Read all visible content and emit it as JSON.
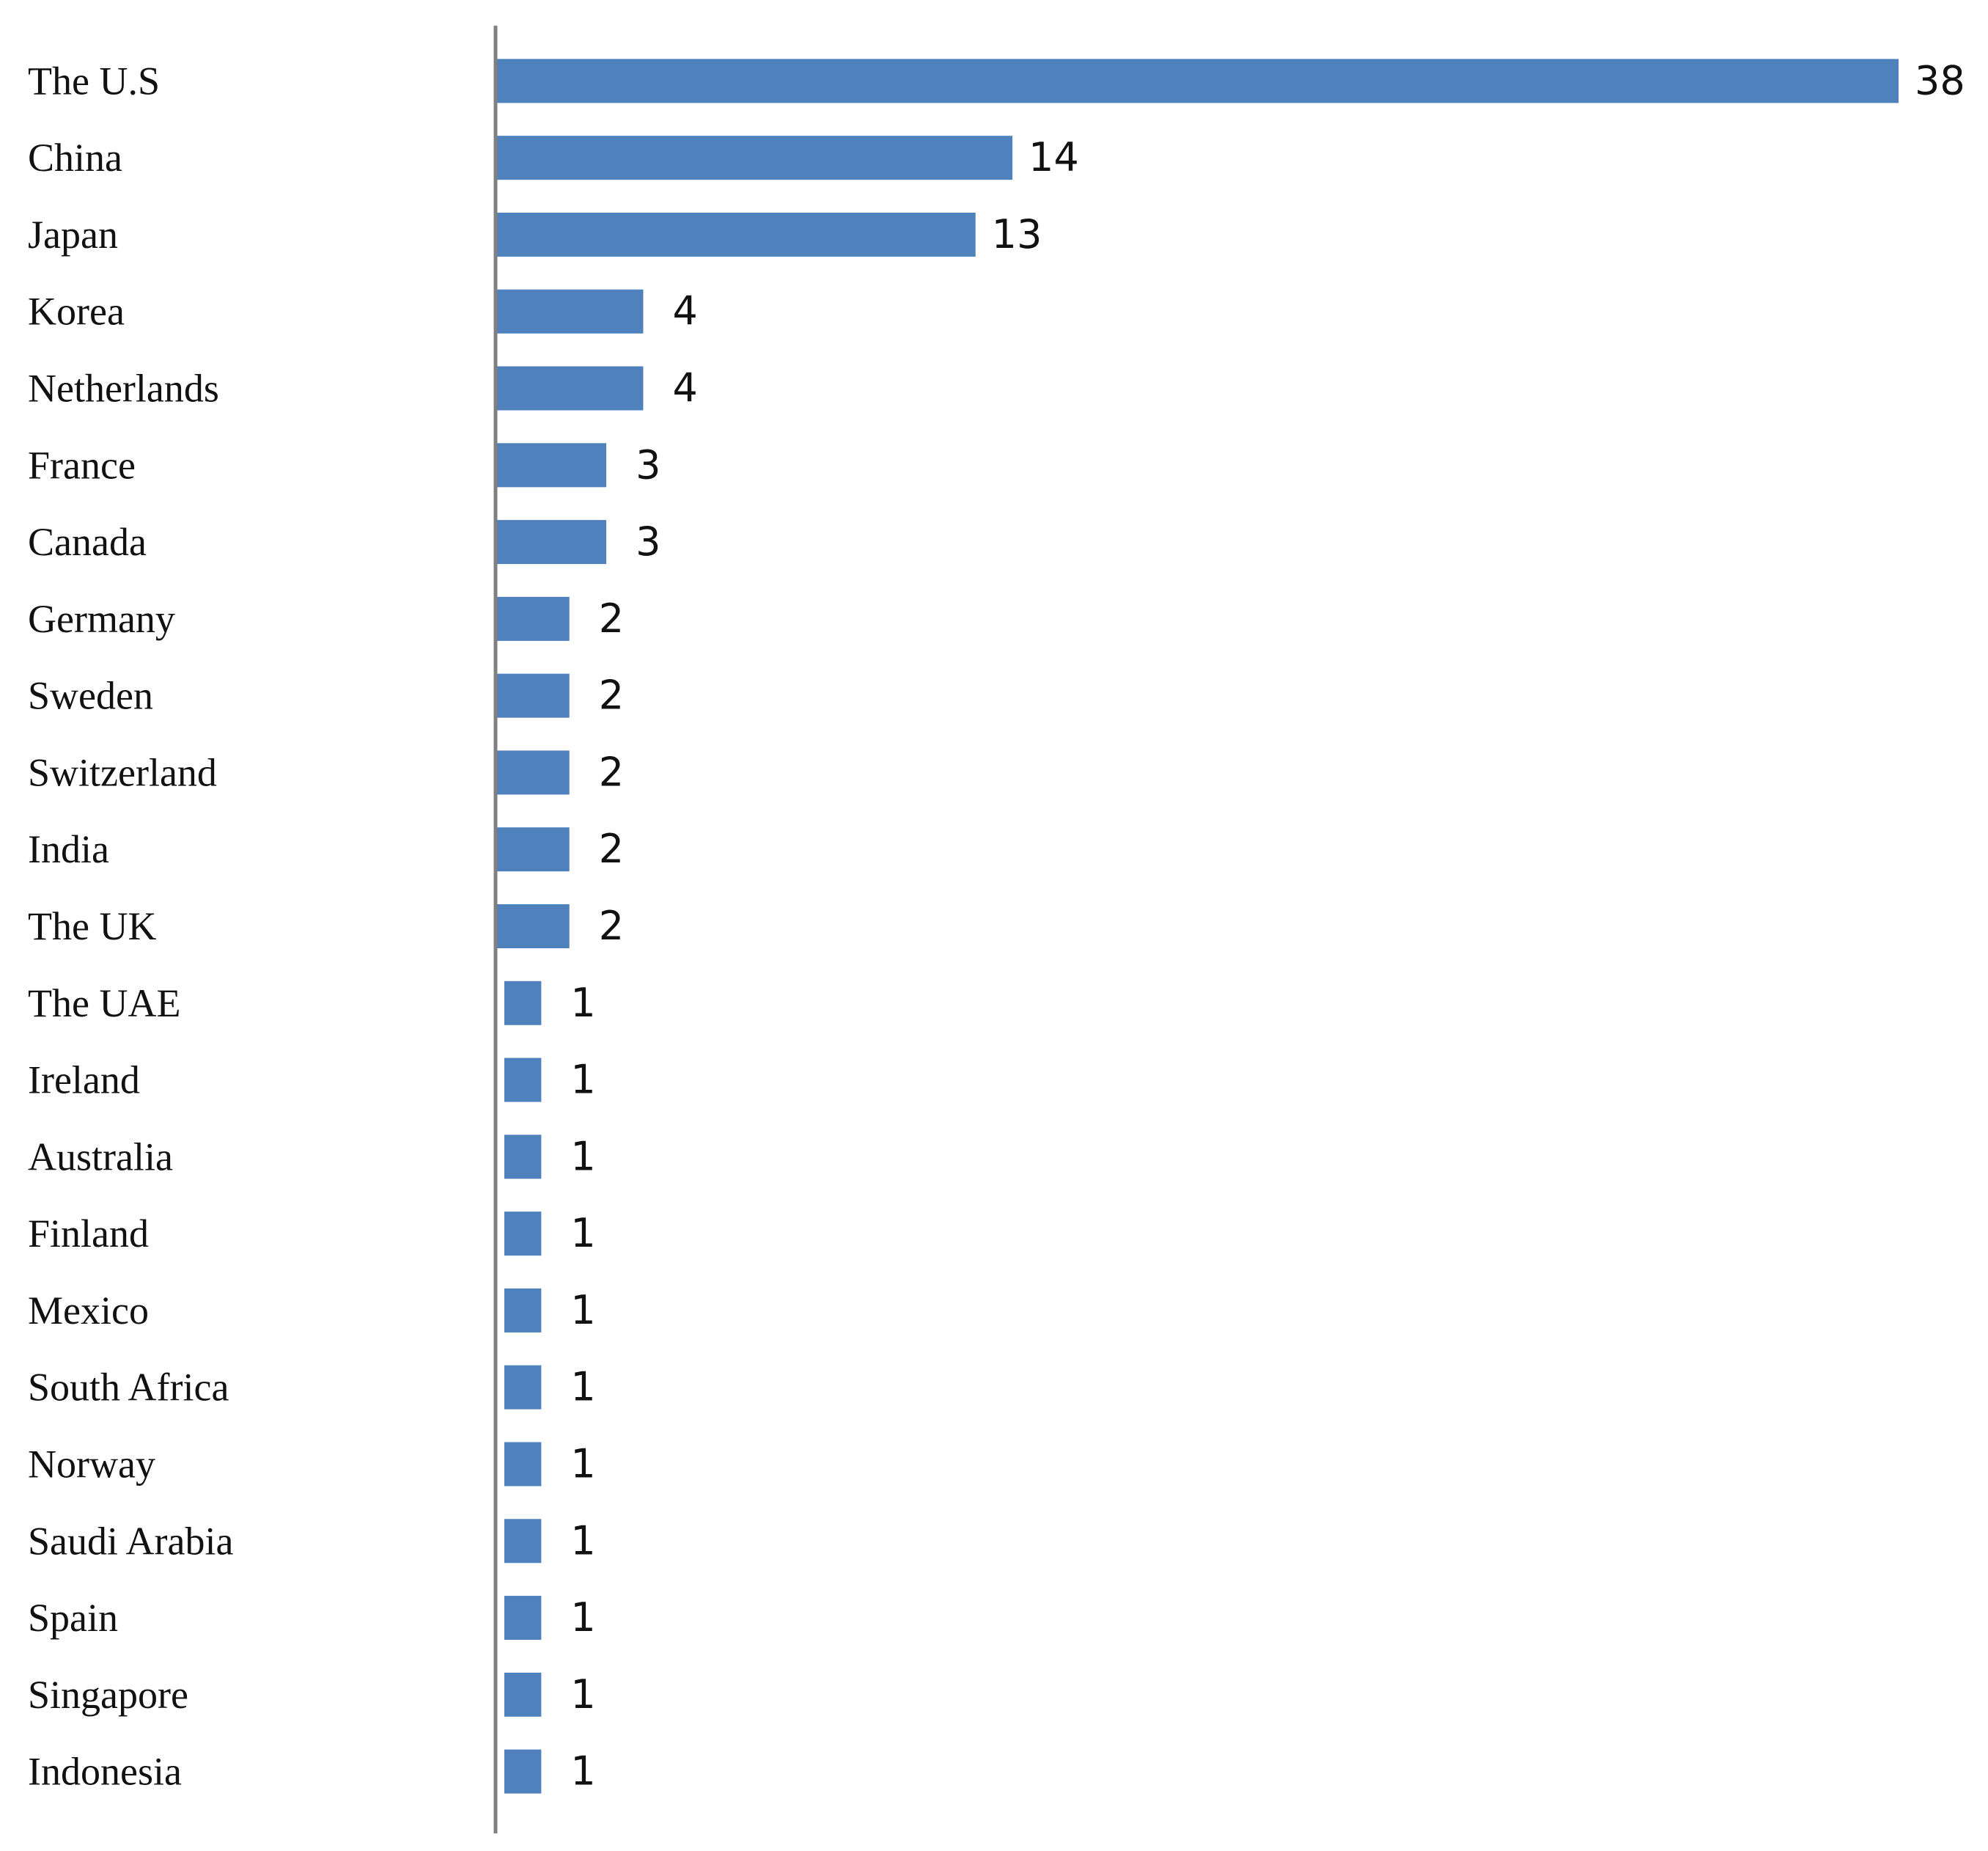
{
  "chart_data": {
    "type": "bar",
    "orientation": "horizontal",
    "title": "",
    "xlabel": "",
    "ylabel": "",
    "categories": [
      "The U.S",
      "China",
      "Japan",
      "Korea",
      "Netherlands",
      "France",
      "Canada",
      "Germany",
      "Sweden",
      "Switzerland",
      "India",
      "The UK",
      "The UAE",
      "Ireland",
      "Australia",
      "Finland",
      "Mexico",
      "South Africa",
      "Norway",
      "Saudi Arabia",
      "Spain",
      "Singapore",
      "Indonesia"
    ],
    "values": [
      38,
      14,
      13,
      4,
      4,
      3,
      3,
      2,
      2,
      2,
      2,
      2,
      1,
      1,
      1,
      1,
      1,
      1,
      1,
      1,
      1,
      1,
      1
    ],
    "xlim": [
      0,
      38
    ],
    "grid": false,
    "legend": "none",
    "bar_color": "#4f81bd",
    "axis_color": "#808080",
    "data_labels": true
  }
}
